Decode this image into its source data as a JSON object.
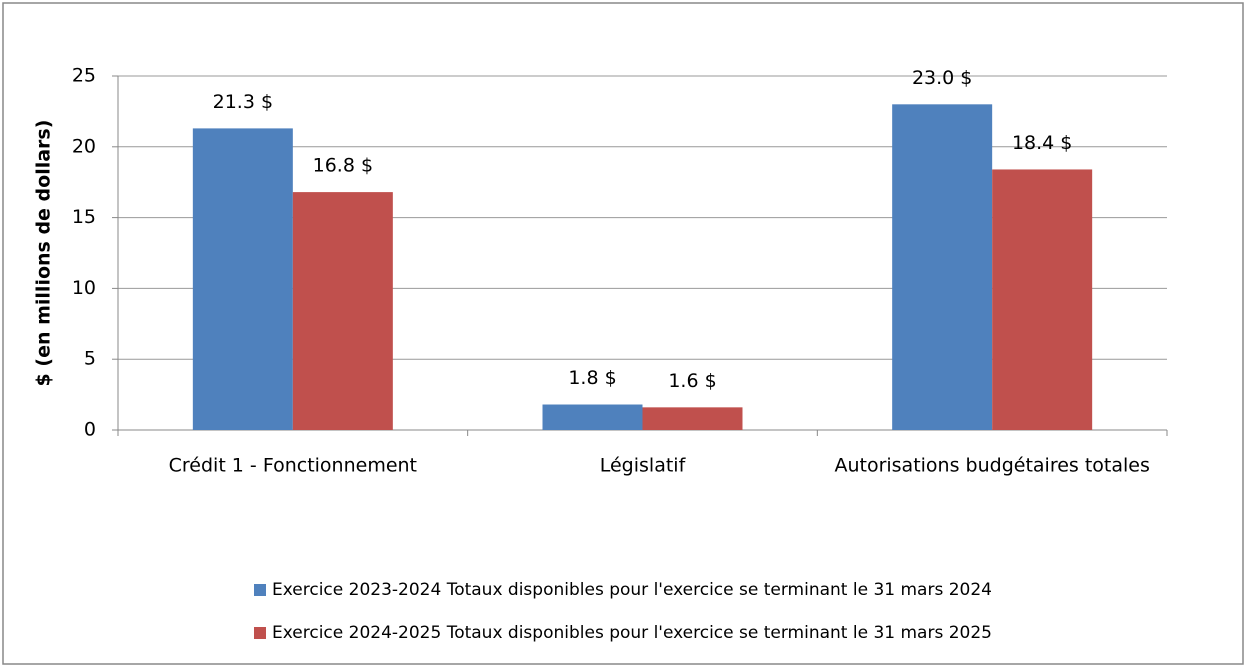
{
  "chart_data": {
    "type": "bar",
    "ylabel": "$ (en millions de dollars)",
    "categories": [
      "Crédit 1 - Fonctionnement",
      "Législatif",
      "Autorisations budgétaires totales"
    ],
    "series": [
      {
        "name": "Exercice 2023-2024 Totaux disponibles pour l'exercice se terminant le 31 mars 2024",
        "color": "#4f81bd",
        "values": [
          21.3,
          1.8,
          23.0
        ],
        "value_labels": [
          "21.3 $",
          "1.8 $",
          "23.0 $"
        ]
      },
      {
        "name": "Exercice 2024-2025 Totaux disponibles pour l'exercice se terminant le 31 mars 2025",
        "color": "#c0504d",
        "values": [
          16.8,
          1.6,
          18.4
        ],
        "value_labels": [
          "16.8 $",
          "1.6 $",
          "18.4 $"
        ]
      }
    ],
    "ylim": [
      0,
      25
    ],
    "yticks": [
      0,
      5,
      10,
      15,
      20,
      25
    ],
    "grid": true,
    "legend": "bottom"
  }
}
